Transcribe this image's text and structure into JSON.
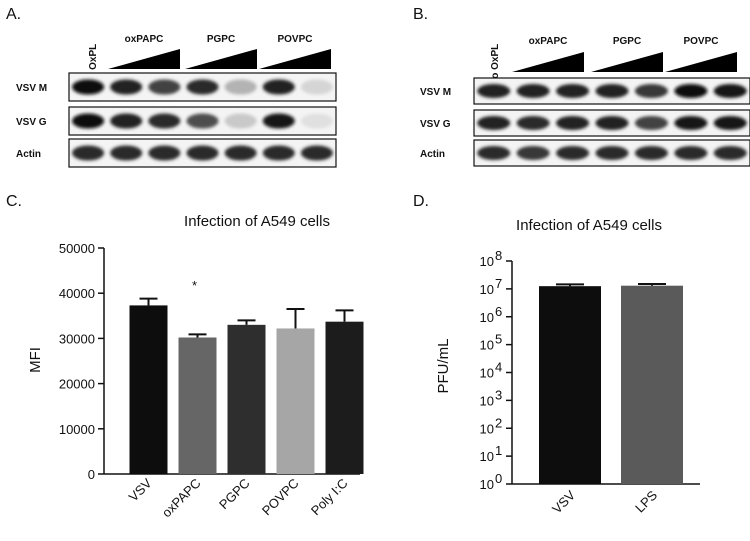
{
  "figure": {
    "panelA": {
      "letter": "A.",
      "control_label": "No OxPL",
      "groups": [
        "oxPAPC",
        "PGPC",
        "POVPC"
      ],
      "rows": [
        {
          "label": "VSV M",
          "intensity": [
            1.0,
            0.9,
            0.75,
            0.85,
            0.25,
            0.9,
            0.1
          ]
        },
        {
          "label": "VSV G",
          "intensity": [
            1.0,
            0.9,
            0.85,
            0.7,
            0.15,
            0.95,
            0.05
          ]
        },
        {
          "label": "Actin",
          "intensity": [
            0.85,
            0.85,
            0.85,
            0.85,
            0.85,
            0.85,
            0.85
          ]
        }
      ]
    },
    "panelB": {
      "letter": "B.",
      "control_label": "No OxPL",
      "groups": [
        "oxPAPC",
        "PGPC",
        "POVPC"
      ],
      "rows": [
        {
          "label": "VSV M",
          "intensity": [
            0.9,
            0.9,
            0.9,
            0.9,
            0.8,
            1.0,
            0.95
          ]
        },
        {
          "label": "VSV G",
          "intensity": [
            0.9,
            0.85,
            0.9,
            0.9,
            0.75,
            0.95,
            0.95
          ]
        },
        {
          "label": "Actin",
          "intensity": [
            0.85,
            0.8,
            0.85,
            0.85,
            0.85,
            0.85,
            0.85
          ]
        }
      ]
    },
    "panelC": {
      "letter": "C."
    },
    "panelD": {
      "letter": "D."
    }
  },
  "chart_data": [
    {
      "type": "bar",
      "title": "Infection of  A549 cells",
      "xlabel": "",
      "ylabel": "MFI",
      "categories": [
        "VSV",
        "oxPAPC",
        "PGPC",
        "POVPC",
        "Poly I:C"
      ],
      "values": [
        37300,
        30200,
        33000,
        32200,
        33700
      ],
      "errors": [
        1500,
        700,
        1000,
        4300,
        2500
      ],
      "colors": [
        "#0d0d0d",
        "#666666",
        "#2e2e2e",
        "#a6a6a6",
        "#1c1c1c"
      ],
      "annotations": [
        {
          "category": "oxPAPC",
          "text": "*"
        }
      ],
      "ylim": [
        0,
        50000
      ],
      "yticks": [
        "0",
        "10000",
        "20000",
        "30000",
        "40000",
        "50000"
      ]
    },
    {
      "type": "bar",
      "title": "Infection of A549 cells",
      "xlabel": "",
      "ylabel": "PFU/mL",
      "categories": [
        "VSV",
        "LPS"
      ],
      "values": [
        12500000,
        13000000
      ],
      "errors": [
        2000000,
        2000000
      ],
      "colors": [
        "#0d0d0d",
        "#5a5a5a"
      ],
      "yscale": "log",
      "ylim": [
        1,
        100000000
      ],
      "yticks": [
        {
          "base": "10",
          "exp": "0"
        },
        {
          "base": "10",
          "exp": "1"
        },
        {
          "base": "10",
          "exp": "2"
        },
        {
          "base": "10",
          "exp": "3"
        },
        {
          "base": "10",
          "exp": "4"
        },
        {
          "base": "10",
          "exp": "5"
        },
        {
          "base": "10",
          "exp": "6"
        },
        {
          "base": "10",
          "exp": "7"
        },
        {
          "base": "10",
          "exp": "8"
        }
      ]
    }
  ]
}
